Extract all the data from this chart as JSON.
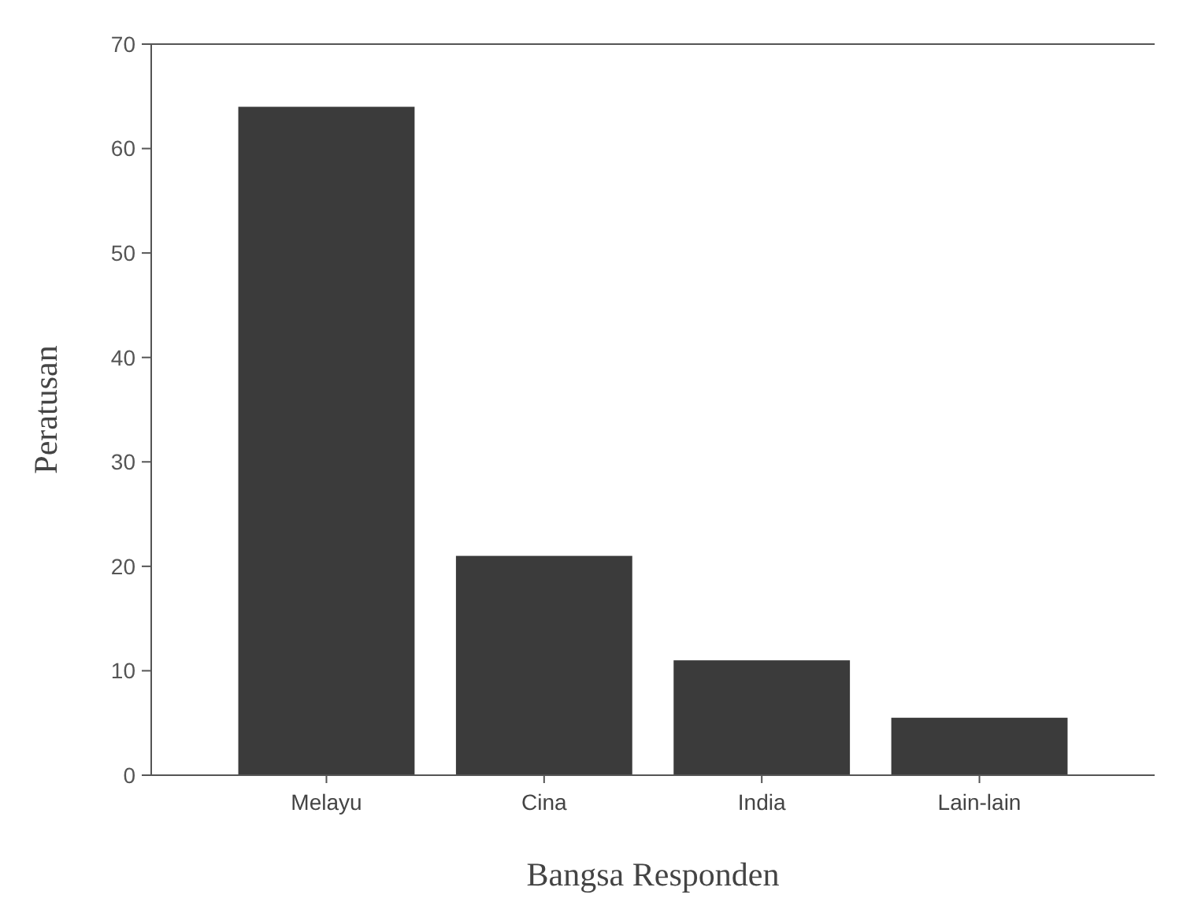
{
  "chart_data": {
    "type": "bar",
    "xlabel": "Bangsa Responden",
    "ylabel": "Peratusan",
    "categories": [
      "Melayu",
      "Cina",
      "India",
      "Lain-lain"
    ],
    "values": [
      64,
      21,
      11,
      5.5
    ],
    "color": "#3b3b3b",
    "ylim": [
      0,
      70
    ],
    "yticks": [
      0,
      10,
      20,
      30,
      40,
      50,
      60,
      70
    ],
    "grid": false
  }
}
